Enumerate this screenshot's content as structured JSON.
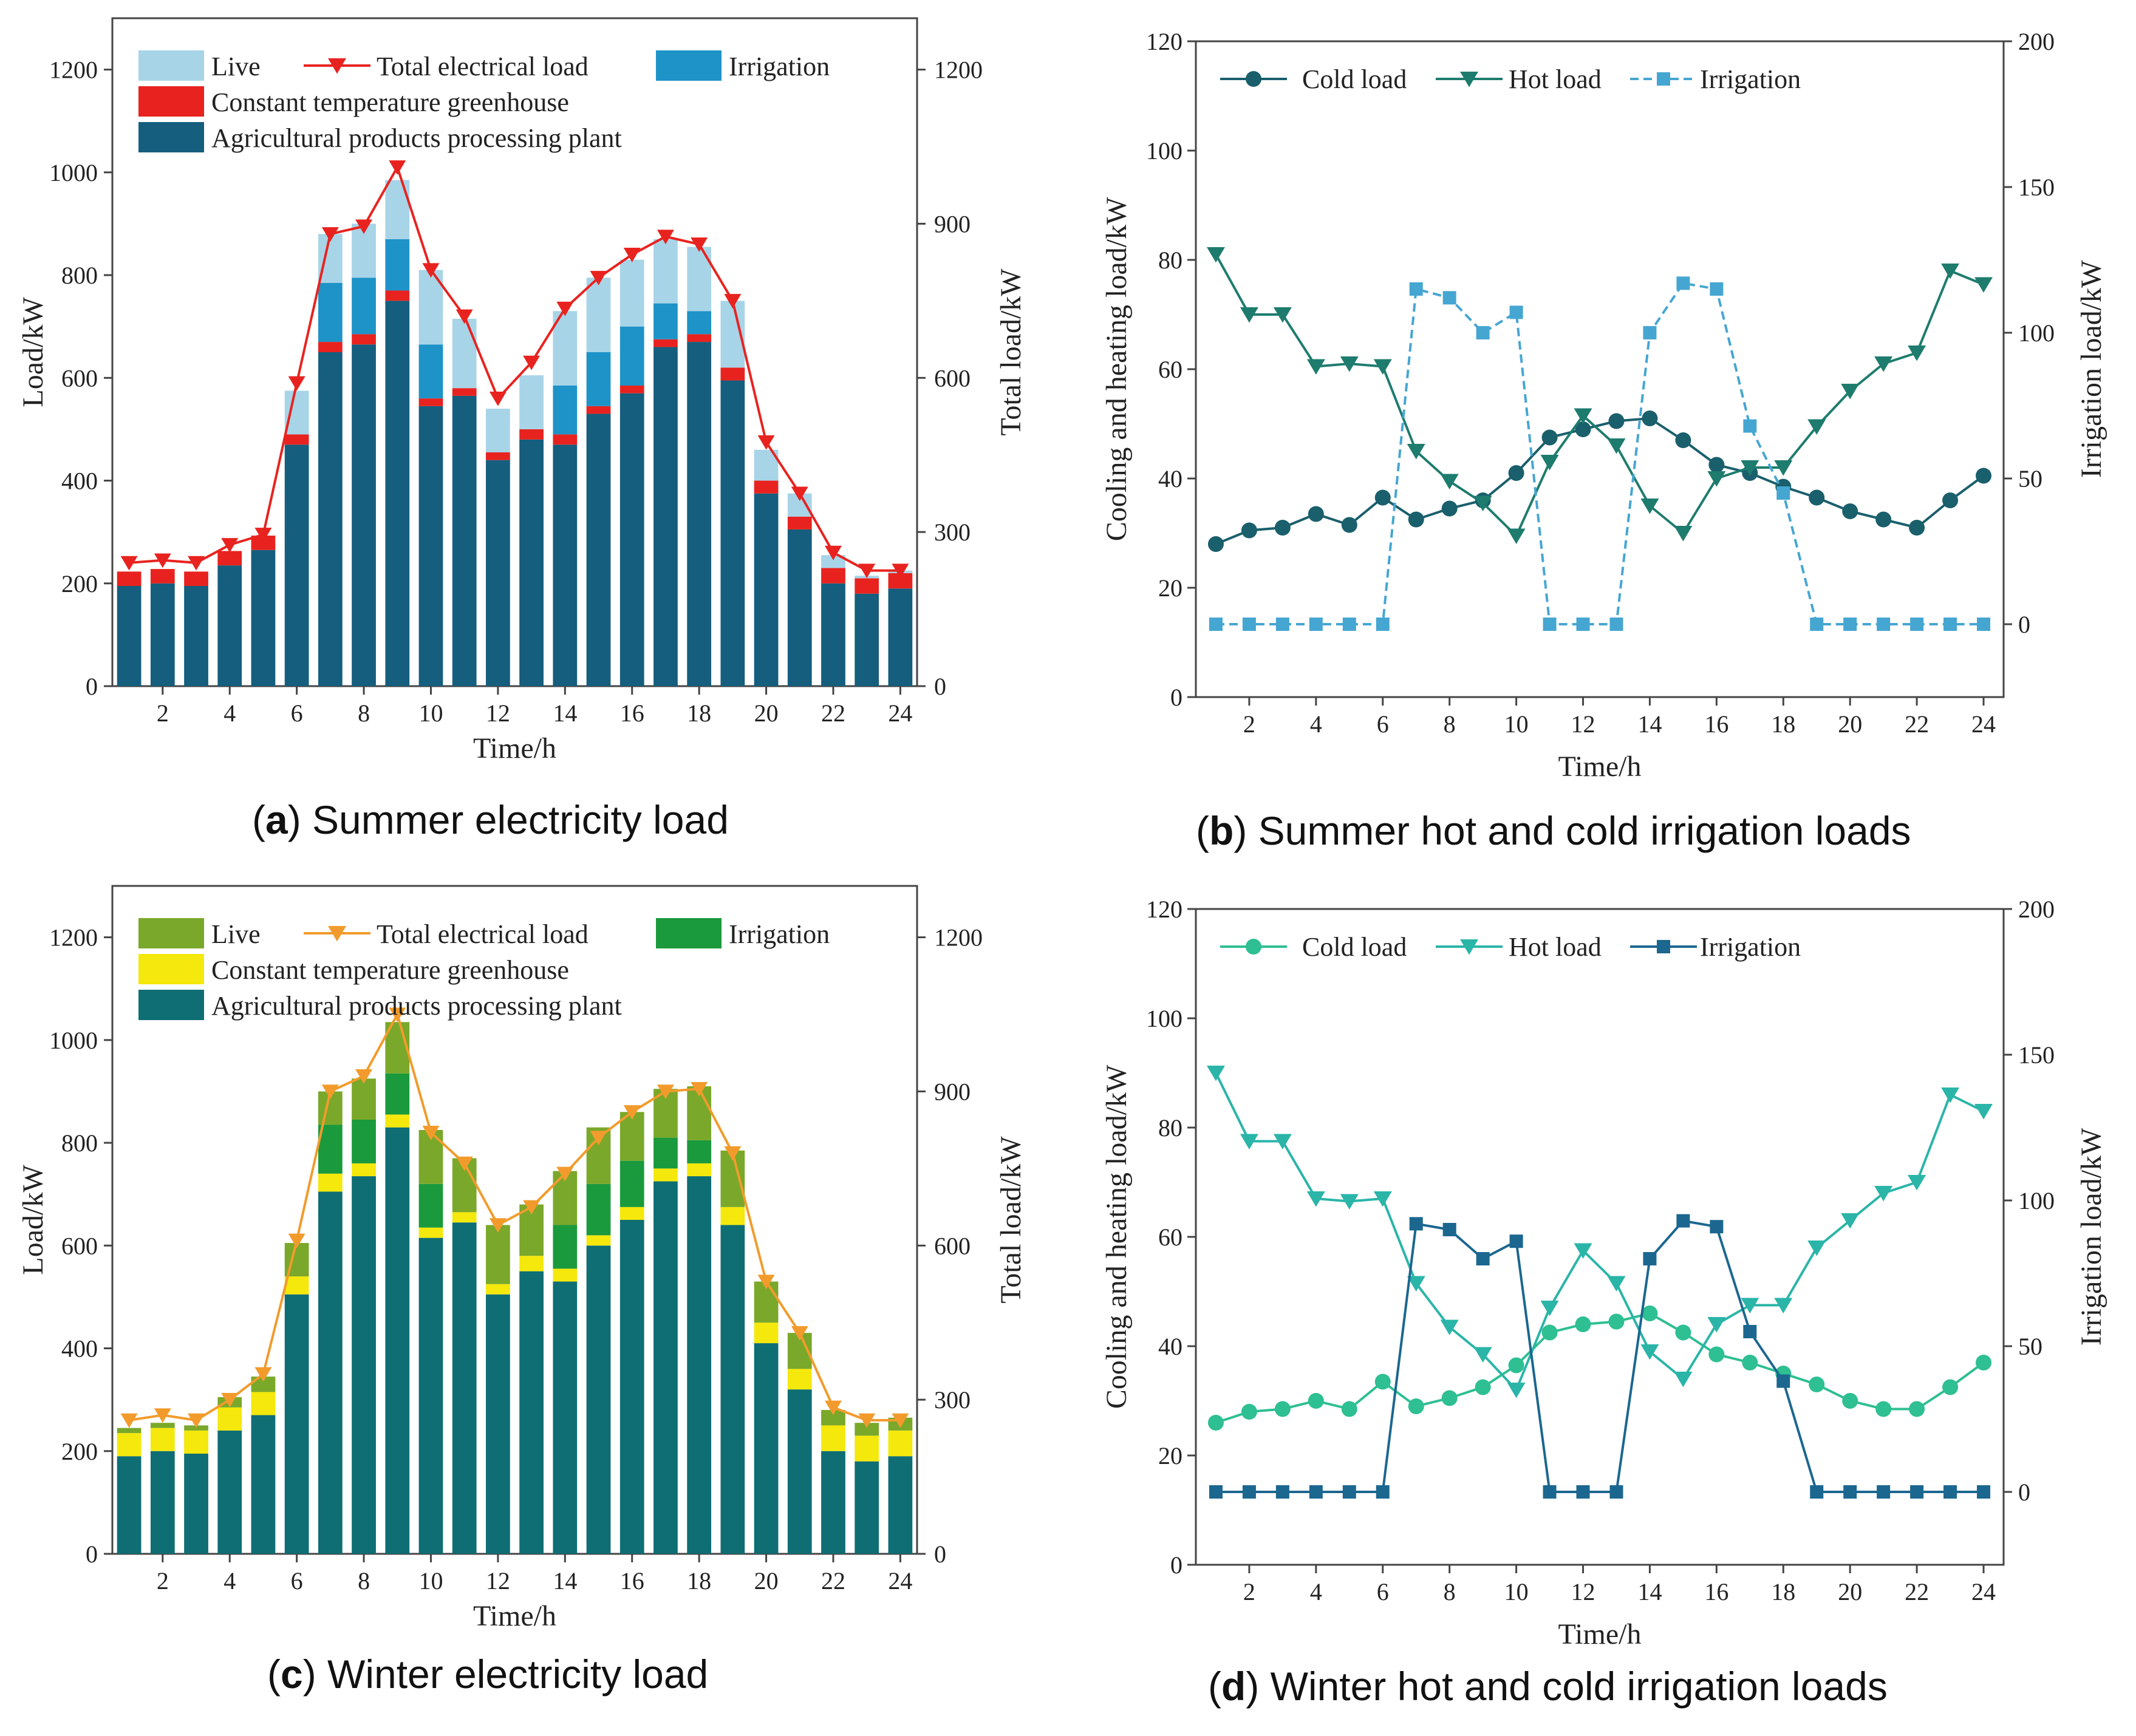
{
  "chart_data": [
    {
      "id": "a",
      "type": "bar",
      "caption": {
        "letter": "a",
        "text": "Summer electricity load"
      },
      "xlabel": "Time/h",
      "ylabel": "Load/kW",
      "ylabel_right": "Total load/kW",
      "ylim": [
        0,
        1300
      ],
      "yticks": [
        0,
        200,
        400,
        600,
        800,
        1000,
        1200
      ],
      "ylim_right": [
        0,
        1300
      ],
      "yticks_right": [
        0,
        300,
        600,
        900,
        1200
      ],
      "categories": [
        1,
        2,
        3,
        4,
        5,
        6,
        7,
        8,
        9,
        10,
        11,
        12,
        13,
        14,
        15,
        16,
        17,
        18,
        19,
        20,
        21,
        22,
        23,
        24
      ],
      "xticks": [
        2,
        4,
        6,
        8,
        10,
        12,
        14,
        16,
        18,
        20,
        22,
        24
      ],
      "colors": {
        "processing": "#155e7e",
        "greenhouse": "#e8231f",
        "irrigation": "#1e93c8",
        "live": "#a8d4e8",
        "total": "#e8231f"
      },
      "legend": {
        "live": "Live",
        "total": "Total electrical load",
        "irrigation": "Irrigation",
        "greenhouse": "Constant temperature greenhouse",
        "processing": "Agricultural products processing plant"
      },
      "series": [
        {
          "name": "Agricultural products processing plant",
          "key": "processing",
          "values": [
            195,
            200,
            195,
            235,
            265,
            470,
            650,
            665,
            750,
            545,
            565,
            440,
            480,
            470,
            530,
            570,
            660,
            670,
            595,
            375,
            305,
            200,
            180,
            190
          ]
        },
        {
          "name": "Constant temperature greenhouse",
          "key": "greenhouse",
          "values": [
            28,
            28,
            28,
            28,
            28,
            20,
            20,
            20,
            20,
            15,
            15,
            15,
            20,
            20,
            15,
            15,
            15,
            15,
            25,
            25,
            25,
            30,
            30,
            30
          ]
        },
        {
          "name": "Irrigation",
          "key": "irrigation",
          "values": [
            0,
            0,
            0,
            0,
            0,
            0,
            115,
            110,
            100,
            105,
            0,
            0,
            0,
            95,
            105,
            115,
            70,
            45,
            0,
            0,
            0,
            0,
            0,
            0
          ]
        },
        {
          "name": "Live",
          "key": "live",
          "values": [
            0,
            0,
            0,
            0,
            0,
            85,
            95,
            105,
            115,
            145,
            135,
            85,
            105,
            145,
            145,
            130,
            125,
            125,
            130,
            60,
            45,
            25,
            5,
            5
          ]
        },
        {
          "name": "Total electrical load",
          "key": "total",
          "type": "line",
          "values": [
            240,
            245,
            240,
            275,
            295,
            590,
            880,
            895,
            1010,
            810,
            720,
            560,
            630,
            735,
            795,
            840,
            875,
            860,
            750,
            475,
            375,
            260,
            225,
            225
          ]
        }
      ]
    },
    {
      "id": "b",
      "type": "line",
      "caption": {
        "letter": "b",
        "text": "Summer hot and cold irrigation loads"
      },
      "xlabel": "Time/h",
      "ylabel": "Cooling and heating load/kW",
      "ylabel_right": "Irrigation load/kW",
      "ylim": [
        0,
        120
      ],
      "yticks": [
        0,
        20,
        40,
        60,
        80,
        100,
        120
      ],
      "ylim_right": [
        -25,
        200
      ],
      "yticks_right": [
        0,
        50,
        100,
        150,
        200
      ],
      "x": [
        1,
        2,
        3,
        4,
        5,
        6,
        7,
        8,
        9,
        10,
        11,
        12,
        13,
        14,
        15,
        16,
        17,
        18,
        19,
        20,
        21,
        22,
        23,
        24
      ],
      "xticks": [
        2,
        4,
        6,
        8,
        10,
        12,
        14,
        16,
        18,
        20,
        22,
        24
      ],
      "colors": {
        "cold": "#1a5f6c",
        "hot": "#1e7c6e",
        "irrigation": "#46a6d2"
      },
      "legend": {
        "cold": "Cold load",
        "hot": "Hot load",
        "irrigation": "Irrigation"
      },
      "series": [
        {
          "name": "Cold load",
          "key": "cold",
          "marker": "circle",
          "axis": "left",
          "values": [
            28,
            30.5,
            31,
            33.5,
            31.5,
            36.5,
            32.5,
            34.5,
            36,
            41,
            47.5,
            49,
            50.5,
            51,
            47,
            42.5,
            41,
            38.5,
            36.5,
            34,
            32.5,
            31,
            36,
            40.5
          ]
        },
        {
          "name": "Hot load",
          "key": "hot",
          "marker": "triangle",
          "axis": "left",
          "values": [
            81,
            70,
            70,
            60.5,
            61,
            60.5,
            45,
            39.5,
            35.5,
            29.5,
            43,
            51.5,
            46,
            35,
            30,
            40,
            42,
            42,
            49.5,
            56,
            61,
            63,
            78,
            75.5
          ]
        },
        {
          "name": "Irrigation",
          "key": "irrigation",
          "marker": "square",
          "dashed": true,
          "axis": "right",
          "values": [
            0,
            0,
            0,
            0,
            0,
            0,
            115,
            112,
            100,
            107,
            0,
            0,
            0,
            100,
            117,
            115,
            68,
            45,
            0,
            0,
            0,
            0,
            0,
            0
          ]
        }
      ]
    },
    {
      "id": "c",
      "type": "bar",
      "caption": {
        "letter": "c",
        "text": "Winter electricity load"
      },
      "xlabel": "Time/h",
      "ylabel": "Load/kW",
      "ylabel_right": "Total load/kW",
      "ylim": [
        0,
        1300
      ],
      "yticks": [
        0,
        200,
        400,
        600,
        800,
        1000,
        1200
      ],
      "ylim_right": [
        0,
        1300
      ],
      "yticks_right": [
        0,
        300,
        600,
        900,
        1200
      ],
      "categories": [
        1,
        2,
        3,
        4,
        5,
        6,
        7,
        8,
        9,
        10,
        11,
        12,
        13,
        14,
        15,
        16,
        17,
        18,
        19,
        20,
        21,
        22,
        23,
        24
      ],
      "xticks": [
        2,
        4,
        6,
        8,
        10,
        12,
        14,
        16,
        18,
        20,
        22,
        24
      ],
      "colors": {
        "processing": "#0e6e74",
        "greenhouse": "#f5e80c",
        "irrigation": "#1a9a3c",
        "live": "#7aa82a",
        "total": "#f29b2c"
      },
      "legend": {
        "live": "Live",
        "total": "Total electrical load",
        "irrigation": "Irrigation",
        "greenhouse": "Constant temperature greenhouse",
        "processing": "Agricultural products processing plant"
      },
      "series": [
        {
          "name": "Agricultural products processing plant",
          "key": "processing",
          "values": [
            190,
            200,
            195,
            240,
            270,
            505,
            705,
            735,
            830,
            615,
            645,
            505,
            550,
            530,
            600,
            650,
            725,
            735,
            640,
            410,
            320,
            200,
            180,
            190
          ]
        },
        {
          "name": "Constant temperature greenhouse",
          "key": "greenhouse",
          "values": [
            45,
            45,
            45,
            45,
            45,
            35,
            35,
            25,
            25,
            20,
            20,
            20,
            30,
            25,
            20,
            25,
            25,
            25,
            35,
            40,
            40,
            50,
            50,
            50
          ]
        },
        {
          "name": "Irrigation",
          "key": "irrigation",
          "values": [
            0,
            0,
            0,
            0,
            0,
            0,
            95,
            85,
            80,
            85,
            0,
            0,
            0,
            85,
            100,
            90,
            60,
            45,
            0,
            0,
            0,
            0,
            0,
            0
          ]
        },
        {
          "name": "Live",
          "key": "live",
          "values": [
            10,
            10,
            10,
            20,
            30,
            65,
            65,
            80,
            100,
            105,
            105,
            115,
            100,
            105,
            110,
            95,
            95,
            105,
            110,
            80,
            70,
            30,
            25,
            25
          ]
        },
        {
          "name": "Total electrical load",
          "key": "total",
          "type": "line",
          "values": [
            260,
            270,
            260,
            300,
            350,
            610,
            900,
            930,
            1050,
            820,
            760,
            640,
            675,
            740,
            810,
            860,
            900,
            905,
            780,
            530,
            430,
            285,
            260,
            260
          ]
        }
      ]
    },
    {
      "id": "d",
      "type": "line",
      "caption": {
        "letter": "d",
        "text": "Winter hot and cold irrigation loads"
      },
      "xlabel": "Time/h",
      "ylabel": "Cooling and heating load/kW",
      "ylabel_right": "Irrigation load/kW",
      "ylim": [
        0,
        120
      ],
      "yticks": [
        0,
        20,
        40,
        60,
        80,
        100,
        120
      ],
      "ylim_right": [
        -25,
        200
      ],
      "yticks_right": [
        0,
        50,
        100,
        150,
        200
      ],
      "x": [
        1,
        2,
        3,
        4,
        5,
        6,
        7,
        8,
        9,
        10,
        11,
        12,
        13,
        14,
        15,
        16,
        17,
        18,
        19,
        20,
        21,
        22,
        23,
        24
      ],
      "xticks": [
        2,
        4,
        6,
        8,
        10,
        12,
        14,
        16,
        18,
        20,
        22,
        24
      ],
      "colors": {
        "cold": "#2ebf92",
        "hot": "#2ab5a8",
        "irrigation": "#1b6790"
      },
      "legend": {
        "cold": "Cold load",
        "hot": "Hot load",
        "irrigation": "Irrigation"
      },
      "series": [
        {
          "name": "Cold load",
          "key": "cold",
          "marker": "circle",
          "axis": "left",
          "values": [
            26,
            28,
            28.5,
            30,
            28.5,
            33.5,
            29,
            30.5,
            32.5,
            36.5,
            42.5,
            44,
            44.5,
            46,
            42.5,
            38.5,
            37,
            35,
            33,
            30,
            28.5,
            28.5,
            32.5,
            37
          ]
        },
        {
          "name": "Hot load",
          "key": "hot",
          "marker": "triangle",
          "axis": "left",
          "values": [
            90,
            77.5,
            77.5,
            67,
            66.5,
            67,
            51.5,
            43.5,
            38.5,
            32,
            47,
            57.5,
            51.5,
            39,
            34,
            44,
            47.5,
            47.5,
            58,
            63,
            68,
            70,
            86,
            83
          ]
        },
        {
          "name": "Irrigation",
          "key": "irrigation",
          "marker": "square",
          "dashed": false,
          "axis": "right",
          "values": [
            0,
            0,
            0,
            0,
            0,
            0,
            92,
            90,
            80,
            86,
            0,
            0,
            0,
            80,
            93,
            91,
            55,
            38,
            0,
            0,
            0,
            0,
            0,
            0
          ]
        }
      ]
    }
  ]
}
